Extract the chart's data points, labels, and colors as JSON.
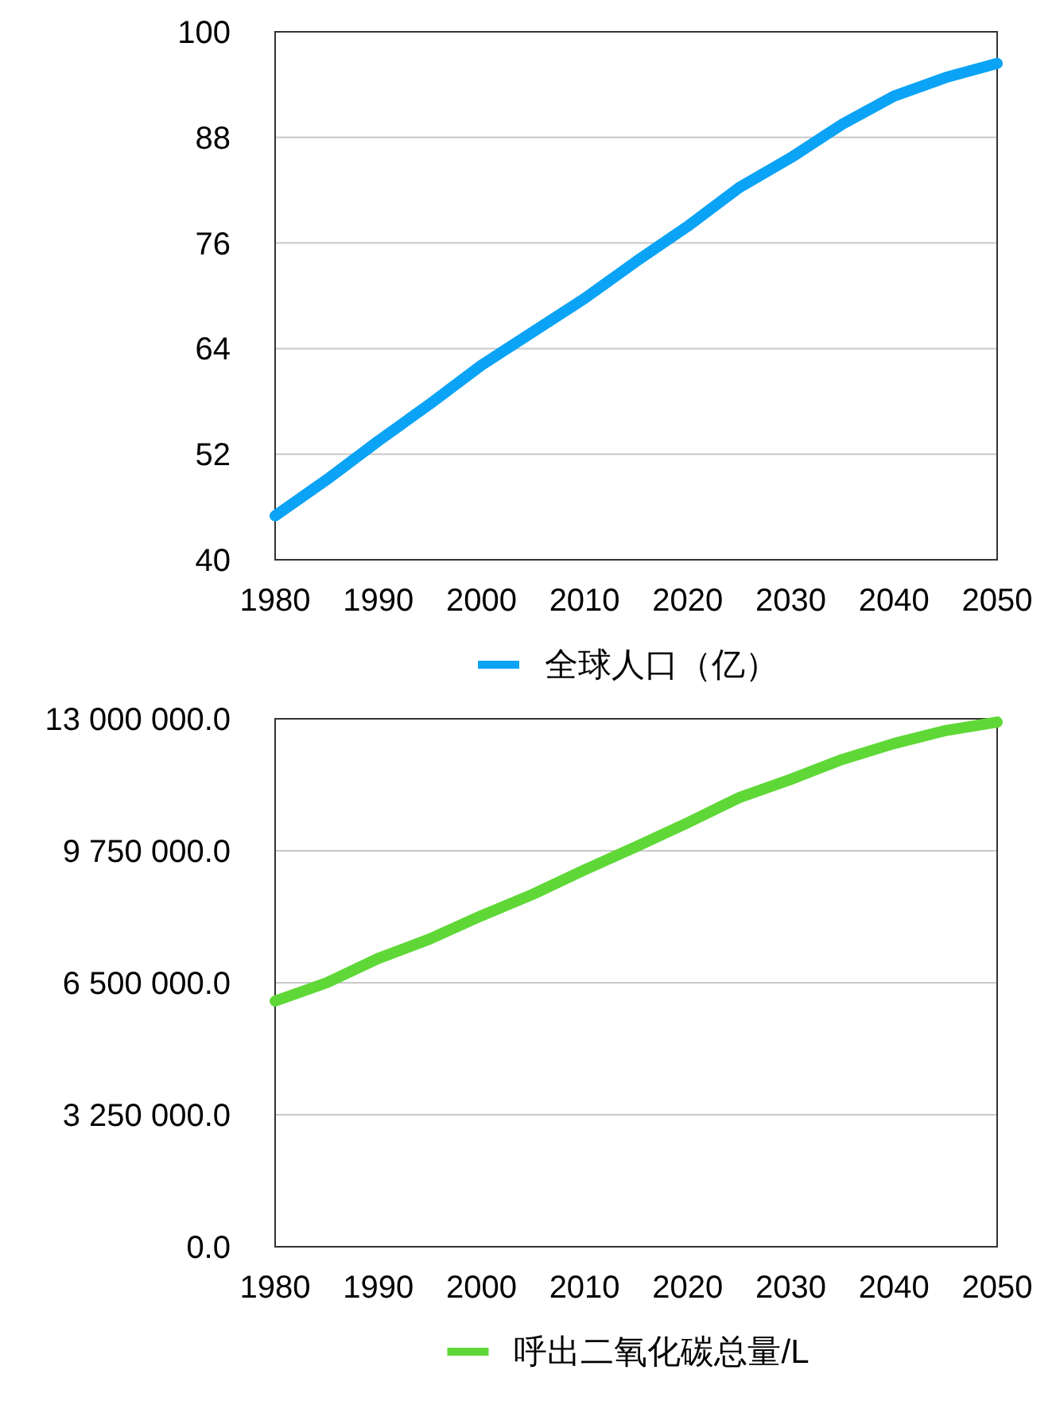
{
  "chart_data": [
    {
      "type": "line",
      "x": [
        1980,
        1985,
        1990,
        1995,
        2000,
        2005,
        2010,
        2015,
        2020,
        2025,
        2030,
        2035,
        2040,
        2045,
        2050
      ],
      "series": [
        {
          "name": "全球人口（亿）",
          "color": "#0ba3f5",
          "values": [
            45.0,
            49.1,
            53.5,
            57.7,
            62.1,
            65.9,
            69.7,
            73.9,
            77.9,
            82.3,
            85.7,
            89.5,
            92.7,
            94.8,
            96.4
          ]
        }
      ],
      "xlim": [
        1980,
        2050
      ],
      "xticks": [
        1980,
        1990,
        2000,
        2010,
        2020,
        2030,
        2040,
        2050
      ],
      "ylim": [
        40,
        100
      ],
      "yticks": [
        40,
        52,
        64,
        76,
        88,
        100
      ],
      "grid": "y",
      "legend": "bottom"
    },
    {
      "type": "line",
      "x": [
        1980,
        1985,
        1990,
        1995,
        2000,
        2005,
        2010,
        2015,
        2020,
        2025,
        2030,
        2035,
        2040,
        2045,
        2050
      ],
      "series": [
        {
          "name": "呼出二氧化碳总量/L",
          "color": "#5fd837",
          "values": [
            6050000,
            6500000,
            7100000,
            7580000,
            8150000,
            8680000,
            9280000,
            9850000,
            10440000,
            11060000,
            11510000,
            12000000,
            12390000,
            12710000,
            12920000
          ]
        }
      ],
      "xlim": [
        1980,
        2050
      ],
      "xticks": [
        1980,
        1990,
        2000,
        2010,
        2020,
        2030,
        2040,
        2050
      ],
      "ylim": [
        0,
        13000000
      ],
      "yticks": [
        {
          "value": 0,
          "label": "0.0"
        },
        {
          "value": 3250000,
          "label": "3 250 000.0"
        },
        {
          "value": 6500000,
          "label": "6 500 000.0"
        },
        {
          "value": 9750000,
          "label": "9 750 000.0"
        },
        {
          "value": 13000000,
          "label": "13 000 000.0"
        }
      ],
      "grid": "y",
      "legend": "bottom"
    }
  ]
}
